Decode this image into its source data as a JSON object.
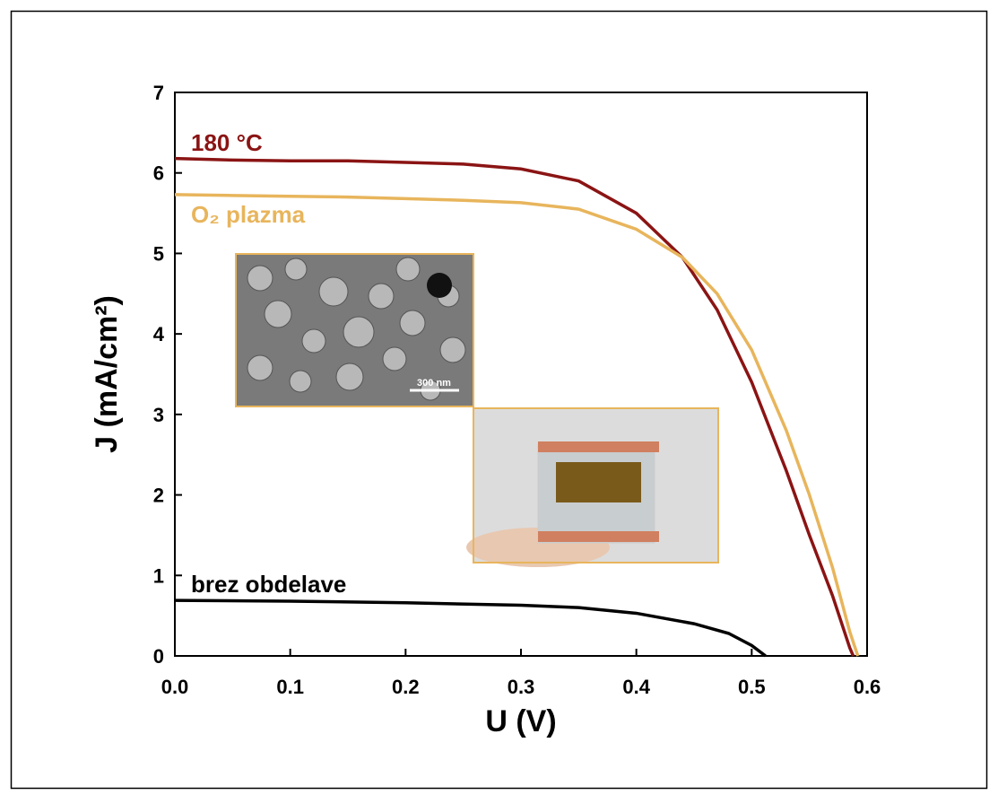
{
  "chart_data": {
    "type": "line",
    "x_label": "U (V)",
    "y_label": "J (mA/cm²)",
    "xlim": [
      0,
      0.6
    ],
    "ylim": [
      0,
      7
    ],
    "xticks": [
      {
        "value": 0,
        "label": "0.0"
      },
      0.1,
      0.2,
      0.3,
      0.4,
      0.5,
      0.6
    ],
    "yticks": [
      0,
      1,
      2,
      3,
      4,
      5,
      6,
      7
    ],
    "inset_scale_label": "300 nm",
    "series": [
      {
        "name": "180 °C",
        "color": "#8b1414",
        "x": [
          0,
          0.05,
          0.1,
          0.15,
          0.2,
          0.25,
          0.3,
          0.35,
          0.4,
          0.44,
          0.47,
          0.5,
          0.53,
          0.55,
          0.57,
          0.585,
          0.588
        ],
        "values": [
          6.18,
          6.16,
          6.15,
          6.15,
          6.13,
          6.11,
          6.05,
          5.9,
          5.5,
          4.95,
          4.3,
          3.4,
          2.3,
          1.5,
          0.75,
          0.1,
          0
        ]
      },
      {
        "name": "O₂ plazma",
        "color": "#e8b55c",
        "x": [
          0,
          0.05,
          0.1,
          0.15,
          0.2,
          0.25,
          0.3,
          0.35,
          0.4,
          0.44,
          0.47,
          0.5,
          0.53,
          0.55,
          0.57,
          0.585,
          0.592
        ],
        "values": [
          5.73,
          5.72,
          5.71,
          5.7,
          5.68,
          5.66,
          5.63,
          5.55,
          5.3,
          4.95,
          4.5,
          3.8,
          2.8,
          2.0,
          1.1,
          0.3,
          0
        ]
      },
      {
        "name": "brez obdelave",
        "color": "#000000",
        "x": [
          0,
          0.1,
          0.2,
          0.3,
          0.35,
          0.4,
          0.45,
          0.48,
          0.5,
          0.512
        ],
        "values": [
          0.69,
          0.68,
          0.66,
          0.63,
          0.6,
          0.53,
          0.4,
          0.28,
          0.13,
          0
        ]
      }
    ]
  }
}
